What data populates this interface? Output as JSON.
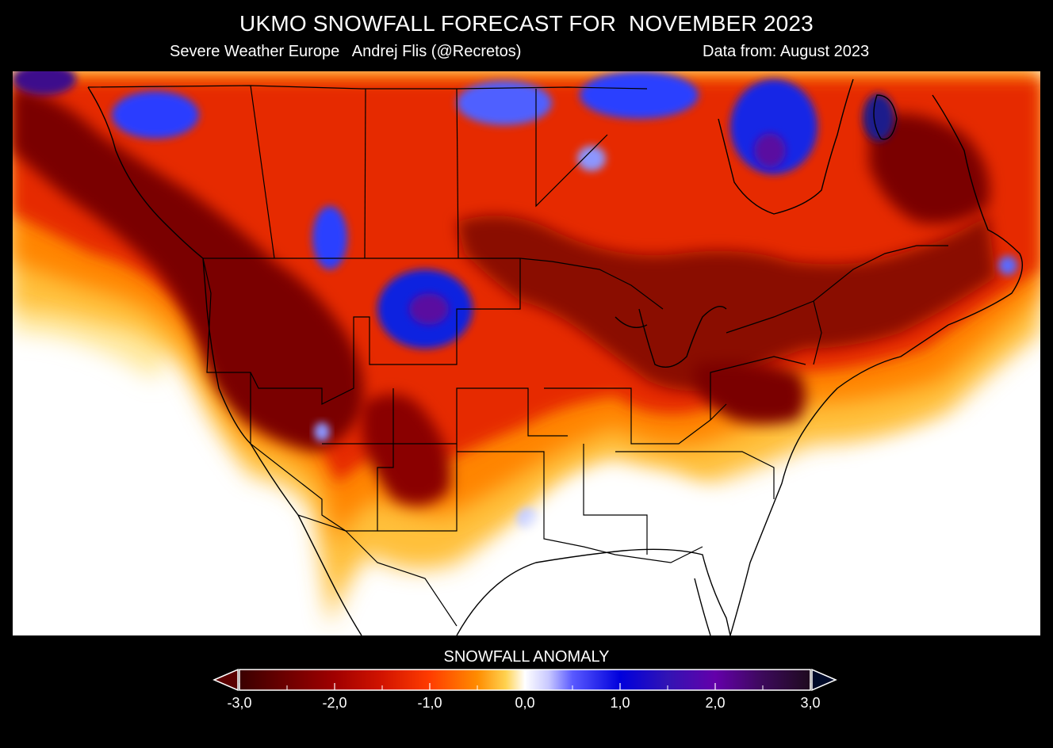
{
  "header": {
    "title": "UKMO SNOWFALL FORECAST FOR  NOVEMBER 2023",
    "credit": "Severe Weather Europe   Andrej Flis (@Recretos)",
    "data_source": "Data from: August 2023"
  },
  "map": {
    "region": "North America",
    "colors": {
      "strong_deficit": "#5a0000",
      "deficit": "#c81e00",
      "mild_deficit": "#ff7a00",
      "near_normal": "#ffffff",
      "surplus": "#0a1ee6",
      "strong_surplus": "#5a0aa0"
    }
  },
  "legend": {
    "title": "SNOWFALL ANOMALY",
    "min": -3.0,
    "max": 3.0,
    "ticks": [
      "-3,0",
      "-2,0",
      "-1,0",
      "0,0",
      "1,0",
      "2,0",
      "3,0"
    ],
    "tick_values": [
      -3,
      -2,
      -1,
      0,
      1,
      2,
      3
    ],
    "minor_tick_values": [
      -2.5,
      -1.5,
      -0.5,
      0.5,
      1.5,
      2.5
    ],
    "color_stops": [
      {
        "value": -3.0,
        "color": "#3a0000"
      },
      {
        "value": -2.5,
        "color": "#6e0000"
      },
      {
        "value": -2.0,
        "color": "#a00000"
      },
      {
        "value": -1.5,
        "color": "#d21400"
      },
      {
        "value": -1.0,
        "color": "#ff3c00"
      },
      {
        "value": -0.5,
        "color": "#ff8c00"
      },
      {
        "value": -0.2,
        "color": "#ffd250"
      },
      {
        "value": 0.0,
        "color": "#ffffff"
      },
      {
        "value": 0.25,
        "color": "#c8c8ff"
      },
      {
        "value": 0.5,
        "color": "#5a5aff"
      },
      {
        "value": 1.0,
        "color": "#0000dc"
      },
      {
        "value": 1.5,
        "color": "#3214b4"
      },
      {
        "value": 2.0,
        "color": "#6400aa"
      },
      {
        "value": 2.5,
        "color": "#3c0a5a"
      },
      {
        "value": 3.0,
        "color": "#1e0a1e"
      }
    ],
    "arrow_low_color": "#5a0000",
    "arrow_high_color": "#000a28"
  }
}
